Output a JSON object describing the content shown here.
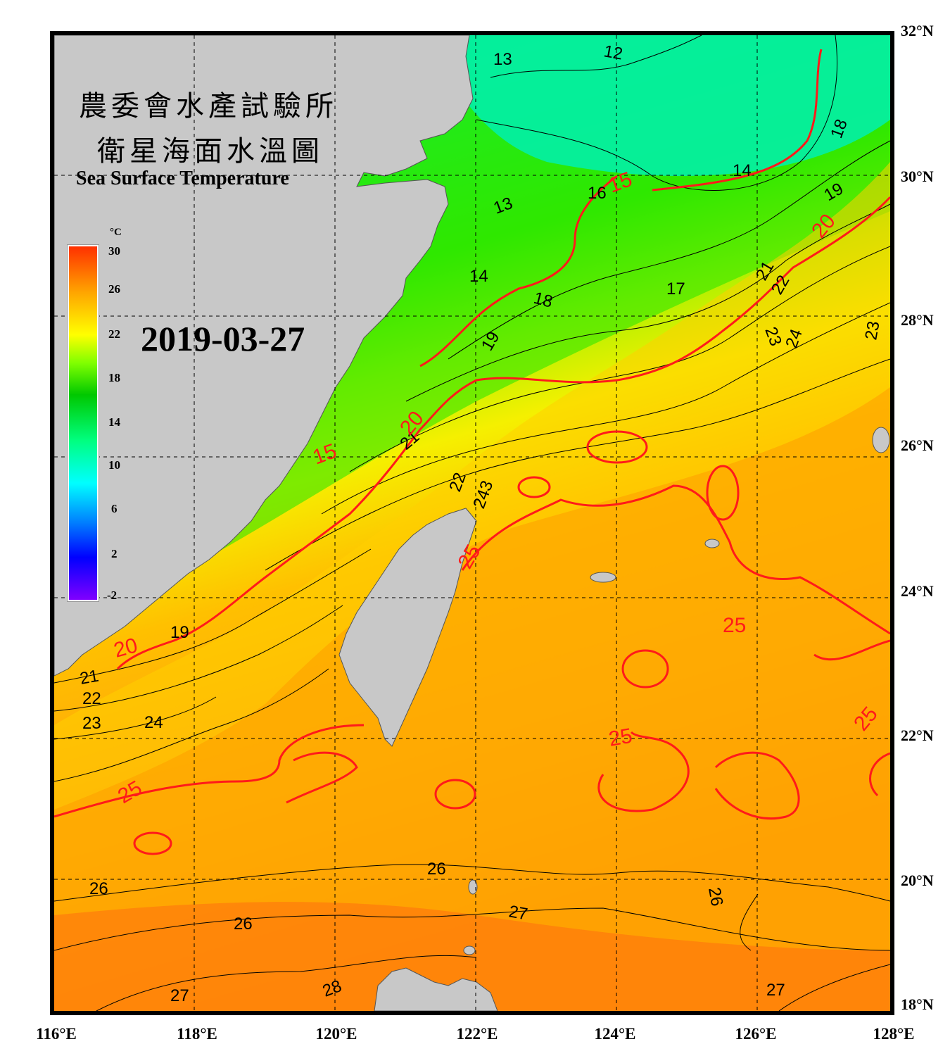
{
  "title": {
    "line1": "農委會水產試驗所",
    "line2": "衛星海面水溫圖",
    "english": "Sea Surface Temperature"
  },
  "date": "2019-03-27",
  "colorbar": {
    "unit": "°C",
    "ticks": [
      "30",
      "26",
      "22",
      "18",
      "14",
      "10",
      "6",
      "2",
      "-2"
    ],
    "range": [
      -2,
      30
    ]
  },
  "axes": {
    "lat_labels": [
      "32°N",
      "30°N",
      "28°N",
      "26°N",
      "24°N",
      "22°N",
      "20°N",
      "18°N"
    ],
    "lon_labels": [
      "116°E",
      "118°E",
      "120°E",
      "122°E",
      "124°E",
      "126°E",
      "128°E"
    ]
  },
  "contour_labels": {
    "black": [
      "13",
      "12",
      "18",
      "14",
      "13",
      "16",
      "17",
      "19",
      "14",
      "18",
      "19",
      "21",
      "22",
      "23",
      "24",
      "23",
      "21",
      "22",
      "243",
      "19",
      "21",
      "22",
      "23",
      "24",
      "26",
      "26",
      "27",
      "26",
      "27",
      "28",
      "27",
      "26"
    ],
    "red": [
      "15",
      "20",
      "15",
      "20",
      "25",
      "25",
      "25",
      "25",
      "25",
      "20"
    ]
  },
  "colors": {
    "land": "#c8c8c8",
    "isotherm_major": "#ff1a1a",
    "isotherm_minor": "#000000",
    "cold_water": "#00f0a0",
    "warm_water": "#ff9a10"
  }
}
